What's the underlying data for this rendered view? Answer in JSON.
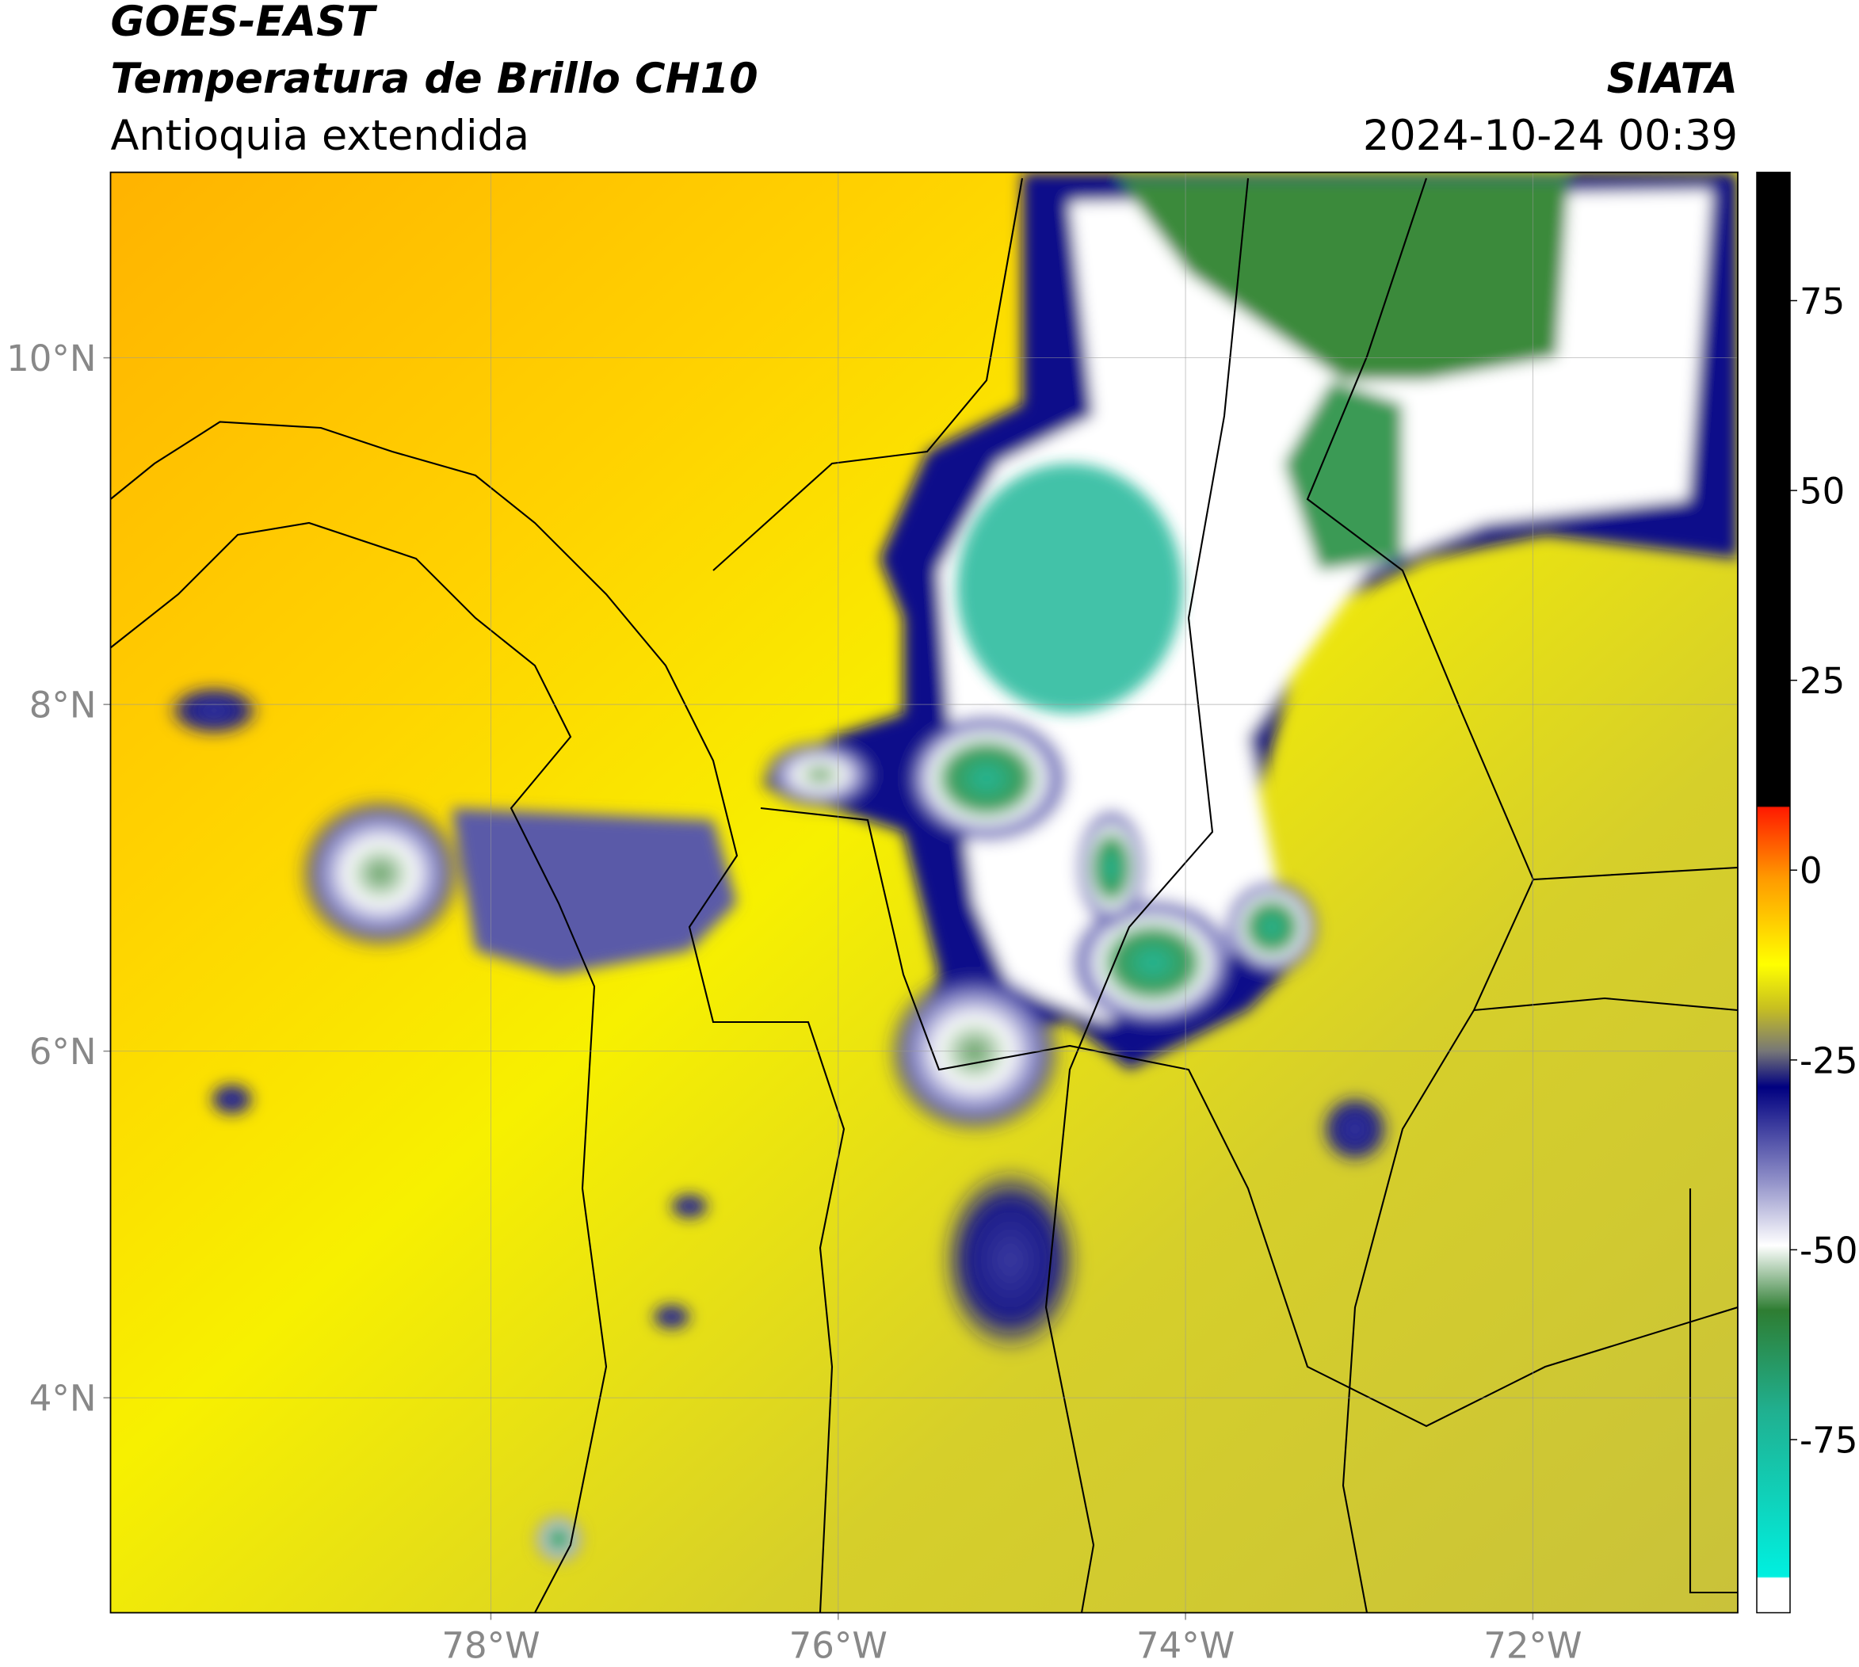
{
  "header": {
    "title": "GOES-EAST",
    "subtitle": "Temperatura de Brillo CH10",
    "region": "Antioquia extendida",
    "source": "SIATA",
    "timestamp": "2024-10-24 00:39"
  },
  "map": {
    "xlim": [
      -80.19,
      -70.82
    ],
    "ylim": [
      2.76,
      11.07
    ],
    "xticks": [
      {
        "value": -78,
        "label": "78°W"
      },
      {
        "value": -76,
        "label": "76°W"
      },
      {
        "value": -74,
        "label": "74°W"
      },
      {
        "value": -72,
        "label": "72°W"
      }
    ],
    "yticks": [
      {
        "value": 4,
        "label": "4°N"
      },
      {
        "value": 6,
        "label": "6°N"
      },
      {
        "value": 8,
        "label": "8°N"
      },
      {
        "value": 10,
        "label": "10°N"
      }
    ],
    "grid": true
  },
  "colorbar": {
    "lim": [
      -97.8,
      91.9
    ],
    "ticks": [
      75,
      50,
      25,
      0,
      -25,
      -50,
      -75
    ]
  }
}
